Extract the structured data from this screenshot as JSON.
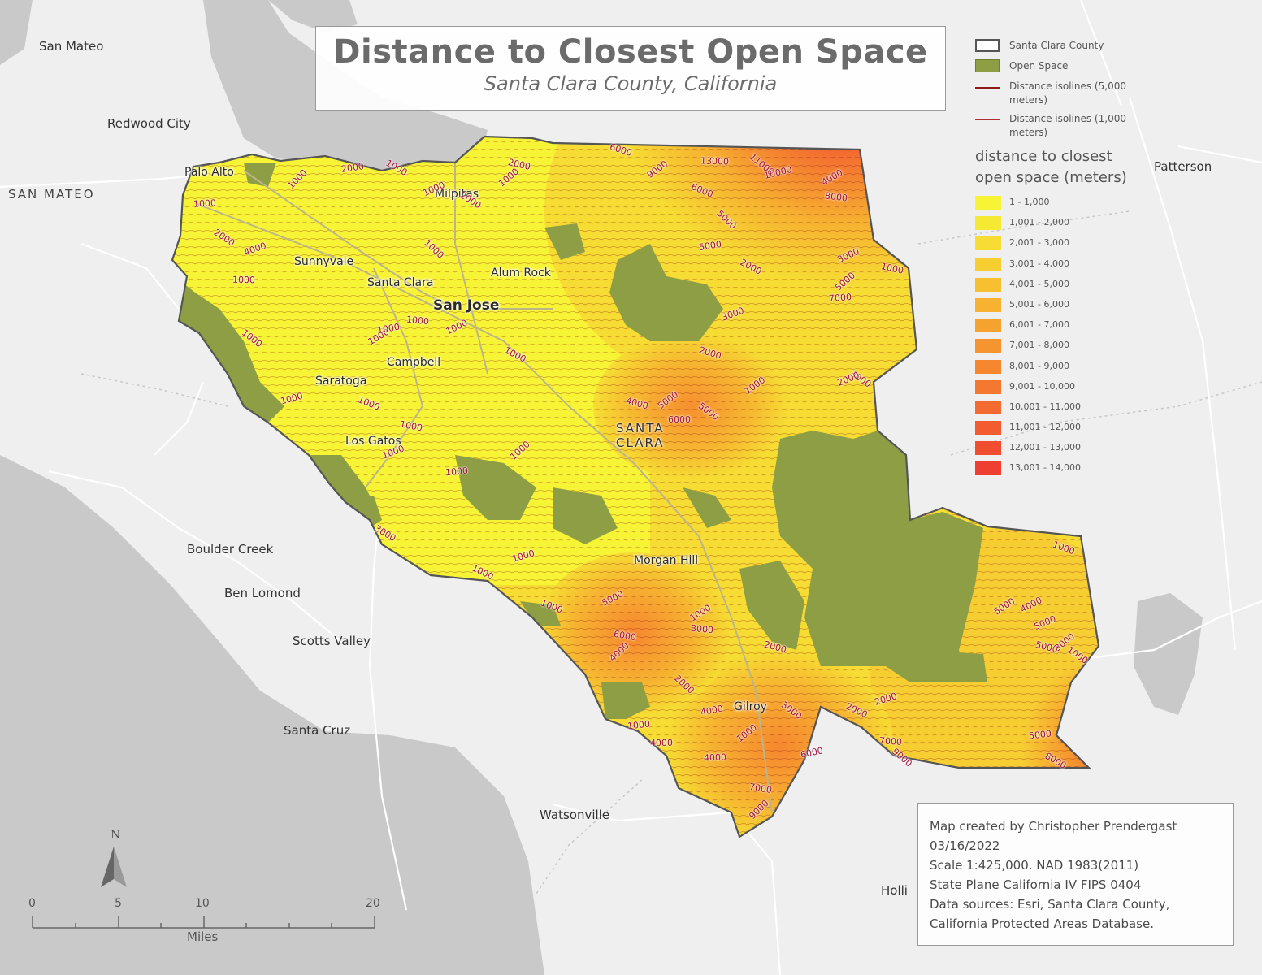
{
  "title": "Distance to Closest Open Space",
  "subtitle": "Santa Clara County, California",
  "colors": {
    "water": "#c9c9c9",
    "land": "#efefef",
    "open_space": "#8e9e45",
    "isoline": "#8b1a1a",
    "isolabel": "#a0103a",
    "classes": [
      "#f7f436",
      "#f6e933",
      "#f6dc33",
      "#f6ce32",
      "#f6c031",
      "#f6b230",
      "#f6a22f",
      "#f6952f",
      "#f6872f",
      "#f4782f",
      "#f36b30",
      "#f25c30",
      "#f04d31",
      "#ef3f33"
    ]
  },
  "legend": {
    "items": [
      {
        "label": "Santa Clara County",
        "icon": "county-outline"
      },
      {
        "label": "Open Space",
        "icon": "open-space-fill"
      },
      {
        "label": "Distance isolines (5,000 meters)",
        "icon": "isoline-5000"
      },
      {
        "label": "Distance isolines (1,000 meters)",
        "icon": "isoline-1000"
      }
    ],
    "heading": "distance to closest open space (meters)",
    "classes": [
      "1 - 1,000",
      "1,001 - 2,000",
      "2,001 - 3,000",
      "3,001 - 4,000",
      "4,001 - 5,000",
      "5,001 - 6,000",
      "6,001 - 7,000",
      "7,001 - 8,000",
      "8,001 - 9,000",
      "9,001 - 10,000",
      "10,001 - 11,000",
      "11,001 - 12,000",
      "12,001 - 13,000",
      "13,001 - 14,000"
    ]
  },
  "places_outside": [
    "San Mateo",
    "Redwood City",
    "SAN MATEO",
    "Patterson",
    "Boulder Creek",
    "Ben Lomond",
    "Scotts Valley",
    "Santa Cruz",
    "Watsonville",
    "Holli"
  ],
  "cities_inside": [
    "Palo Alto",
    "Milpitas",
    "Sunnyvale",
    "Santa Clara",
    "Alum Rock",
    "San Jose",
    "Campbell",
    "Saratoga",
    "Los Gatos",
    "Morgan Hill",
    "Gilroy"
  ],
  "county_label": [
    "SANTA",
    "CLARA"
  ],
  "isoline_labels": [
    "1000",
    "2000",
    "1000",
    "1000",
    "2000",
    "1000",
    "1000",
    "2000",
    "4000",
    "6000",
    "9000",
    "13000",
    "11000",
    "10000",
    "6000",
    "4000",
    "8000",
    "5000",
    "5000",
    "2000",
    "3000",
    "1000",
    "5000",
    "7000",
    "3000",
    "3000",
    "2000",
    "1000",
    "1000",
    "1000",
    "1000",
    "1000",
    "1000",
    "1000",
    "1000",
    "1000",
    "1000",
    "1000",
    "1000",
    "1000",
    "1000",
    "2000",
    "1000",
    "4000",
    "5000",
    "6000",
    "5000",
    "1000",
    "1000",
    "1000",
    "3000",
    "2000",
    "4000",
    "1000",
    "5000",
    "6000",
    "4000",
    "1000",
    "3000",
    "2000",
    "2000",
    "1000",
    "4000",
    "3000",
    "2000",
    "1000",
    "5000",
    "7000",
    "9000",
    "6000",
    "2000",
    "4000",
    "7000",
    "9000",
    "5000",
    "8000",
    "5000",
    "5000",
    "3000",
    "4000",
    "1000"
  ],
  "credits": [
    "Map created by Christopher Prendergast",
    "03/16/2022",
    "Scale 1:425,000. NAD 1983(2011)",
    "State Plane California IV FIPS 0404",
    "Data sources: Esri, Santa Clara County,",
    "California Protected Areas Database."
  ],
  "north_label": "N",
  "scale": {
    "ticks": [
      "0",
      "5",
      "10",
      "20"
    ],
    "units": "Miles"
  }
}
